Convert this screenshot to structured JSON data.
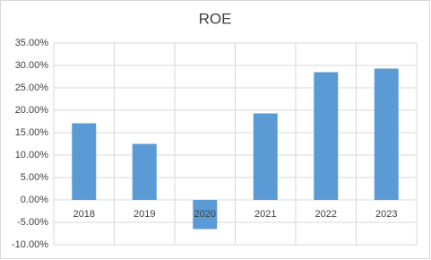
{
  "chart_data": {
    "type": "bar",
    "title": "ROE",
    "categories": [
      "2018",
      "2019",
      "2020",
      "2021",
      "2022",
      "2023"
    ],
    "values": [
      17.1,
      12.5,
      -6.5,
      19.3,
      28.5,
      29.3
    ],
    "color": "#5b9bd5",
    "ylim": [
      -10,
      35
    ],
    "yticks": [
      {
        "value": -10,
        "label": "-10.00%"
      },
      {
        "value": -5,
        "label": "-5.00%"
      },
      {
        "value": 0,
        "label": "0.00%"
      },
      {
        "value": 5,
        "label": "5.00%"
      },
      {
        "value": 10,
        "label": "10.00%"
      },
      {
        "value": 15,
        "label": "15.00%"
      },
      {
        "value": 20,
        "label": "20.00%"
      },
      {
        "value": 25,
        "label": "25.00%"
      },
      {
        "value": 30,
        "label": "30.00%"
      },
      {
        "value": 35,
        "label": "35.00%"
      }
    ],
    "grid": true
  }
}
